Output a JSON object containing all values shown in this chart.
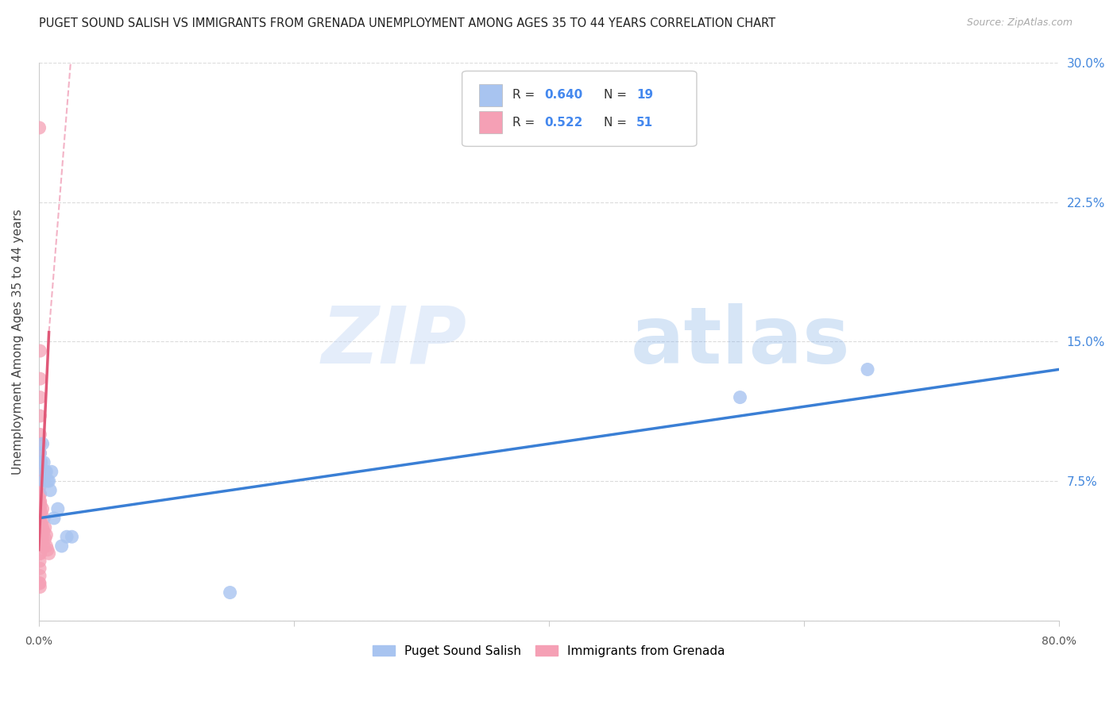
{
  "title": "PUGET SOUND SALISH VS IMMIGRANTS FROM GRENADA UNEMPLOYMENT AMONG AGES 35 TO 44 YEARS CORRELATION CHART",
  "source": "Source: ZipAtlas.com",
  "ylabel": "Unemployment Among Ages 35 to 44 years",
  "xmin": 0.0,
  "xmax": 0.8,
  "ymin": 0.0,
  "ymax": 0.3,
  "xticks": [
    0.0,
    0.2,
    0.4,
    0.6,
    0.8
  ],
  "ytick_labels_right": [
    "",
    "7.5%",
    "15.0%",
    "22.5%",
    "30.0%"
  ],
  "yticks": [
    0.0,
    0.075,
    0.15,
    0.225,
    0.3
  ],
  "label_blue": "Puget Sound Salish",
  "label_pink": "Immigrants from Grenada",
  "blue_scatter": [
    [
      0.001,
      0.09
    ],
    [
      0.002,
      0.085
    ],
    [
      0.003,
      0.095
    ],
    [
      0.004,
      0.085
    ],
    [
      0.005,
      0.08
    ],
    [
      0.004,
      0.075
    ],
    [
      0.006,
      0.08
    ],
    [
      0.007,
      0.075
    ],
    [
      0.008,
      0.075
    ],
    [
      0.009,
      0.07
    ],
    [
      0.01,
      0.08
    ],
    [
      0.012,
      0.055
    ],
    [
      0.015,
      0.06
    ],
    [
      0.018,
      0.04
    ],
    [
      0.022,
      0.045
    ],
    [
      0.026,
      0.045
    ],
    [
      0.55,
      0.12
    ],
    [
      0.65,
      0.135
    ],
    [
      0.15,
      0.015
    ]
  ],
  "pink_scatter": [
    [
      0.0005,
      0.265
    ],
    [
      0.001,
      0.145
    ],
    [
      0.001,
      0.13
    ],
    [
      0.001,
      0.12
    ],
    [
      0.001,
      0.11
    ],
    [
      0.001,
      0.1
    ],
    [
      0.001,
      0.095
    ],
    [
      0.001,
      0.09
    ],
    [
      0.001,
      0.085
    ],
    [
      0.001,
      0.08
    ],
    [
      0.001,
      0.075
    ],
    [
      0.0008,
      0.072
    ],
    [
      0.0008,
      0.068
    ],
    [
      0.0008,
      0.064
    ],
    [
      0.0008,
      0.06
    ],
    [
      0.0008,
      0.056
    ],
    [
      0.0008,
      0.052
    ],
    [
      0.0008,
      0.048
    ],
    [
      0.0008,
      0.044
    ],
    [
      0.0008,
      0.04
    ],
    [
      0.0008,
      0.036
    ],
    [
      0.0008,
      0.032
    ],
    [
      0.0008,
      0.028
    ],
    [
      0.0008,
      0.024
    ],
    [
      0.0008,
      0.02
    ],
    [
      0.0012,
      0.068
    ],
    [
      0.0012,
      0.064
    ],
    [
      0.0012,
      0.058
    ],
    [
      0.0012,
      0.054
    ],
    [
      0.0012,
      0.05
    ],
    [
      0.0012,
      0.046
    ],
    [
      0.0012,
      0.04
    ],
    [
      0.0012,
      0.036
    ],
    [
      0.0015,
      0.062
    ],
    [
      0.002,
      0.058
    ],
    [
      0.002,
      0.052
    ],
    [
      0.002,
      0.045
    ],
    [
      0.003,
      0.06
    ],
    [
      0.003,
      0.05
    ],
    [
      0.003,
      0.044
    ],
    [
      0.004,
      0.055
    ],
    [
      0.004,
      0.048
    ],
    [
      0.004,
      0.04
    ],
    [
      0.005,
      0.05
    ],
    [
      0.005,
      0.044
    ],
    [
      0.006,
      0.046
    ],
    [
      0.006,
      0.04
    ],
    [
      0.007,
      0.038
    ],
    [
      0.008,
      0.036
    ],
    [
      0.0005,
      0.02
    ],
    [
      0.001,
      0.018
    ]
  ],
  "blue_line": [
    0.0,
    0.055,
    0.8,
    0.135
  ],
  "pink_line_solid": [
    0.0,
    0.038,
    0.008,
    0.155
  ],
  "pink_line_dashed": [
    0.008,
    0.155,
    0.025,
    0.3
  ],
  "blue_color": "#a8c4f0",
  "blue_line_color": "#3a7fd5",
  "pink_color": "#f5a0b5",
  "pink_line_color": "#e05878",
  "pink_line_dashed_color": "#f0a0b8",
  "watermark_zip": "ZIP",
  "watermark_atlas": "atlas",
  "background_color": "#ffffff",
  "grid_color": "#cccccc",
  "legend_blue_r": "0.640",
  "legend_blue_n": "19",
  "legend_pink_r": "0.522",
  "legend_pink_n": "51"
}
